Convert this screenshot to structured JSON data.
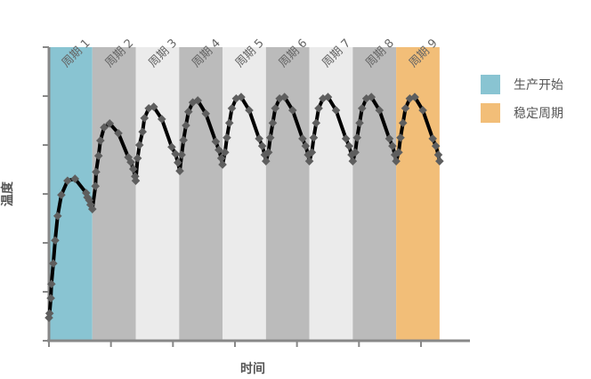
{
  "chart_data": {
    "type": "line",
    "xlabel": "时间",
    "ylabel": "温度",
    "xlim": [
      0,
      6.79
    ],
    "ylim": [
      0,
      6
    ],
    "grid": false,
    "legend": "right",
    "bands": [
      {
        "label": "周期 1",
        "start": 0.0,
        "end": 0.7,
        "color": "#89c4d2"
      },
      {
        "label": "周期 2",
        "start": 0.7,
        "end": 1.4,
        "color": "#bbbbbb"
      },
      {
        "label": "周期 3",
        "start": 1.4,
        "end": 2.1,
        "color": "#ebebeb"
      },
      {
        "label": "周期 4",
        "start": 2.1,
        "end": 2.8,
        "color": "#bbbbbb"
      },
      {
        "label": "周期 5",
        "start": 2.8,
        "end": 3.5,
        "color": "#ebebeb"
      },
      {
        "label": "周期 6",
        "start": 3.5,
        "end": 4.2,
        "color": "#bbbbbb"
      },
      {
        "label": "周期 7",
        "start": 4.2,
        "end": 4.9,
        "color": "#ebebeb"
      },
      {
        "label": "周期 8",
        "start": 4.9,
        "end": 5.6,
        "color": "#bbbbbb"
      },
      {
        "label": "周期 9",
        "start": 5.6,
        "end": 6.3,
        "color": "#f2be78"
      }
    ],
    "legend_entries": [
      {
        "label": "生产开始",
        "color": "#89c4d2"
      },
      {
        "label": "稳定周期",
        "color": "#f2be78"
      }
    ],
    "line_color": "#000000",
    "marker_color": "#5e5e5e",
    "x": [
      0.0,
      0.01,
      0.03,
      0.04,
      0.07,
      0.1,
      0.14,
      0.2,
      0.3,
      0.42,
      0.6,
      0.62,
      0.65,
      0.67,
      0.7,
      0.75,
      0.76,
      0.8,
      0.83,
      0.89,
      0.98,
      1.12,
      1.28,
      1.32,
      1.36,
      1.39,
      1.4,
      1.43,
      1.46,
      1.51,
      1.54,
      1.61,
      1.69,
      1.82,
      1.98,
      2.04,
      2.08,
      2.11,
      2.14,
      2.17,
      2.21,
      2.25,
      2.32,
      2.4,
      2.53,
      2.69,
      2.74,
      2.78,
      2.8,
      2.84,
      2.87,
      2.91,
      2.95,
      3.02,
      3.1,
      3.23,
      3.39,
      3.44,
      3.48,
      3.5,
      3.54,
      3.57,
      3.61,
      3.65,
      3.72,
      3.8,
      3.93,
      4.09,
      4.14,
      4.18,
      4.2,
      4.24,
      4.27,
      4.31,
      4.35,
      4.42,
      4.5,
      4.63,
      4.79,
      4.84,
      4.88,
      4.9,
      4.94,
      4.97,
      5.01,
      5.05,
      5.12,
      5.2,
      5.33,
      5.49,
      5.54,
      5.58,
      5.6,
      5.64,
      5.67,
      5.71,
      5.75,
      5.82,
      5.9,
      6.03,
      6.19,
      6.24,
      6.28,
      6.3
    ],
    "y": [
      0.47,
      0.56,
      0.87,
      1.16,
      1.58,
      2.05,
      2.55,
      2.98,
      3.27,
      3.31,
      3.02,
      2.93,
      2.87,
      2.78,
      2.69,
      3.16,
      3.45,
      3.78,
      4.09,
      4.36,
      4.44,
      4.24,
      3.75,
      3.65,
      3.51,
      3.36,
      3.27,
      3.73,
      4.0,
      4.27,
      4.55,
      4.75,
      4.78,
      4.53,
      3.96,
      3.82,
      3.64,
      3.47,
      3.8,
      4.1,
      4.4,
      4.68,
      4.87,
      4.91,
      4.64,
      4.07,
      3.9,
      3.73,
      3.6,
      3.85,
      4.15,
      4.45,
      4.75,
      4.95,
      4.98,
      4.71,
      4.13,
      3.98,
      3.8,
      3.67,
      3.85,
      4.15,
      4.45,
      4.75,
      4.95,
      4.98,
      4.71,
      4.13,
      3.98,
      3.8,
      3.67,
      3.85,
      4.15,
      4.45,
      4.75,
      4.95,
      4.98,
      4.71,
      4.13,
      3.98,
      3.8,
      3.67,
      3.85,
      4.15,
      4.45,
      4.75,
      4.95,
      4.98,
      4.71,
      4.13,
      3.98,
      3.8,
      3.67,
      3.85,
      4.15,
      4.45,
      4.75,
      4.95,
      4.98,
      4.71,
      4.13,
      3.98,
      3.8,
      3.67
    ]
  }
}
